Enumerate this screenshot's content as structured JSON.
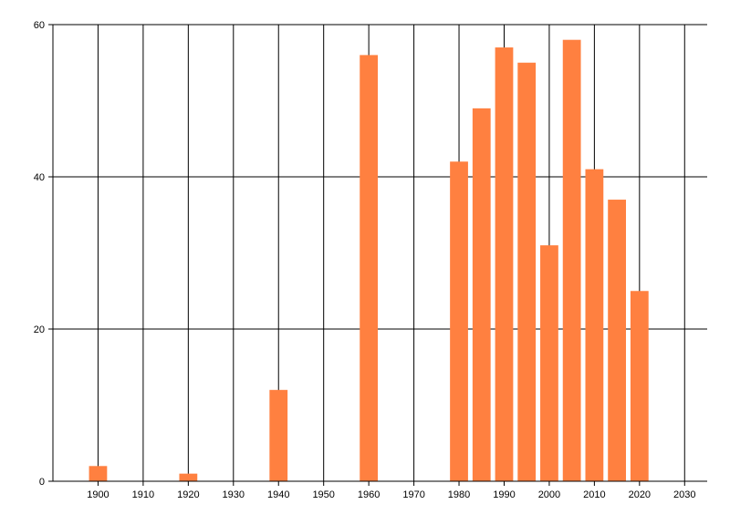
{
  "chart_data": {
    "type": "bar",
    "x": [
      1900,
      1920,
      1940,
      1960,
      1980,
      1985,
      1990,
      1995,
      2000,
      2005,
      2010,
      2015,
      2020
    ],
    "values": [
      2,
      1,
      12,
      56,
      42,
      49,
      57,
      55,
      31,
      58,
      41,
      37,
      25
    ],
    "title": "",
    "xlabel": "",
    "ylabel": "",
    "xlim": [
      1890,
      2035
    ],
    "ylim": [
      0,
      60
    ],
    "x_ticks": [
      "1900",
      "1910",
      "1920",
      "1930",
      "1940",
      "1950",
      "1960",
      "1970",
      "1980",
      "1990",
      "2000",
      "2010",
      "2020",
      "2030"
    ],
    "y_ticks": [
      "0",
      "20",
      "40",
      "60"
    ],
    "grid": true,
    "legend": "none",
    "bar_color": "#FF8040",
    "grid_color": "#000000"
  }
}
